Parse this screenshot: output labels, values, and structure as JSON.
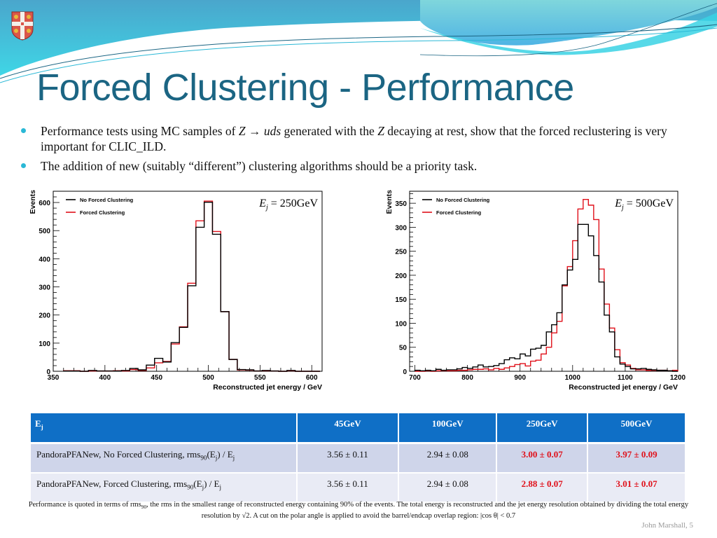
{
  "slide": {
    "title": "Forced Clustering - Performance",
    "bullets": [
      {
        "pre": "Performance tests using MC samples of ",
        "z1": "Z",
        "arrow": " → ",
        "uds": "uds",
        "mid": " generated with the ",
        "z2": "Z",
        "post": " decaying at rest, show that the forced reclustering is very important for CLIC_ILD."
      },
      {
        "text": "The addition of new (suitably “different”) clustering algorithms should be a priority task."
      }
    ],
    "crest_icon": "university-crest-icon",
    "colors": {
      "title": "#1b6583",
      "bullet": "#2ab8d6",
      "table_header": "#0f6fc6",
      "highlight": "#e0101a",
      "row1": "#cfd5ea",
      "row2": "#e9ebf5"
    }
  },
  "table": {
    "header": {
      "label": "E",
      "label_sub": "j",
      "cols": [
        "45GeV",
        "100GeV",
        "250GeV",
        "500GeV"
      ]
    },
    "rows": [
      {
        "label_pre": "PandoraPFANew, No Forced Clustering, rms",
        "label_sub90": "90",
        "label_mid": "(E",
        "label_subj": "j",
        "label_post": ") / E",
        "label_subj2": "j",
        "values": [
          "3.56 ± 0.11",
          "2.94 ± 0.08",
          "3.00 ± 0.07",
          "3.97 ± 0.09"
        ],
        "highlight": [
          false,
          false,
          true,
          true
        ]
      },
      {
        "label_pre": "PandoraPFANew, Forced Clustering, rms",
        "label_sub90": "90",
        "label_mid": "(E",
        "label_subj": "j",
        "label_post": ") / E",
        "label_subj2": "j",
        "values": [
          "3.56 ± 0.11",
          "2.94 ± 0.08",
          "2.88 ± 0.07",
          "3.01 ± 0.07"
        ],
        "highlight": [
          false,
          false,
          true,
          true
        ]
      }
    ]
  },
  "footnote": {
    "pre": "Performance is quoted in terms of rms",
    "sub": "90",
    "post": ", the rms in the smallest range of reconstructed energy containing 90% of the events. The total energy is reconstructed and the jet energy resolution obtained by dividing the total energy resolution by √2. A cut on the polar angle is applied to avoid the barrel/endcap overlap region: |cos θ| < 0.7"
  },
  "footer": {
    "author": "John Marshall, 5"
  },
  "chart_data": [
    {
      "type": "histogram",
      "title": "",
      "annotation": {
        "var": "E",
        "sub": "j",
        "text": " = 250GeV"
      },
      "xlabel": "Reconstructed jet energy / GeV",
      "ylabel": "Events",
      "xlim": [
        350,
        610
      ],
      "ylim": [
        0,
        640
      ],
      "xticks": [
        350,
        400,
        450,
        500,
        550,
        600
      ],
      "yticks": [
        0,
        100,
        200,
        300,
        400,
        500,
        600
      ],
      "legend": {
        "placement": "top-left",
        "entries": [
          {
            "name": "No Forced Clustering",
            "color": "#000000"
          },
          {
            "name": "Forced Clustering",
            "color": "#e0101a"
          }
        ]
      },
      "bin_edges_start": 360,
      "bin_width": 8,
      "series": [
        {
          "name": "No Forced Clustering",
          "color": "#000000",
          "values": [
            1,
            1,
            0,
            3,
            1,
            1,
            1,
            3,
            10,
            5,
            22,
            46,
            33,
            102,
            156,
            304,
            512,
            601,
            487,
            212,
            42,
            6,
            5,
            1,
            3,
            1,
            0,
            3,
            0,
            0,
            0
          ]
        },
        {
          "name": "Forced Clustering",
          "color": "#e0101a",
          "values": [
            2,
            2,
            0,
            1,
            1,
            1,
            2,
            1,
            6,
            3,
            12,
            30,
            35,
            97,
            158,
            313,
            535,
            605,
            497,
            212,
            42,
            5,
            4,
            1,
            2,
            1,
            0,
            2,
            0,
            0,
            0
          ]
        }
      ]
    },
    {
      "type": "histogram",
      "title": "",
      "annotation": {
        "var": "E",
        "sub": "j",
        "text": " = 500GeV"
      },
      "xlabel": "Reconstructed jet energy / GeV",
      "ylabel": "Events",
      "xlim": [
        690,
        1200
      ],
      "ylim": [
        0,
        375
      ],
      "xticks": [
        700,
        800,
        900,
        1000,
        1100,
        1200
      ],
      "yticks": [
        0,
        50,
        100,
        150,
        200,
        250,
        300,
        350
      ],
      "legend": {
        "placement": "top-left",
        "entries": [
          {
            "name": "No Forced Clustering",
            "color": "#000000"
          },
          {
            "name": "Forced Clustering",
            "color": "#e0101a"
          }
        ]
      },
      "bin_edges_start": 700,
      "bin_width": 10,
      "series": [
        {
          "name": "No Forced Clustering",
          "color": "#000000",
          "values": [
            2,
            1,
            2,
            1,
            4,
            2,
            3,
            3,
            5,
            8,
            6,
            9,
            13,
            9,
            10,
            12,
            16,
            24,
            28,
            26,
            36,
            32,
            46,
            48,
            54,
            82,
            97,
            122,
            180,
            211,
            233,
            306,
            306,
            282,
            241,
            186,
            117,
            82,
            30,
            15,
            10,
            5,
            5,
            6,
            4,
            3,
            2,
            2,
            1,
            0
          ]
        },
        {
          "name": "Forced Clustering",
          "color": "#e0101a",
          "values": [
            0,
            0,
            1,
            0,
            1,
            1,
            1,
            1,
            2,
            2,
            3,
            4,
            4,
            5,
            3,
            6,
            4,
            7,
            10,
            14,
            16,
            11,
            21,
            23,
            36,
            50,
            80,
            104,
            178,
            218,
            272,
            338,
            358,
            346,
            316,
            213,
            140,
            90,
            45,
            18,
            13,
            6,
            3,
            3,
            2,
            2,
            2,
            2,
            1,
            2
          ]
        }
      ]
    }
  ]
}
